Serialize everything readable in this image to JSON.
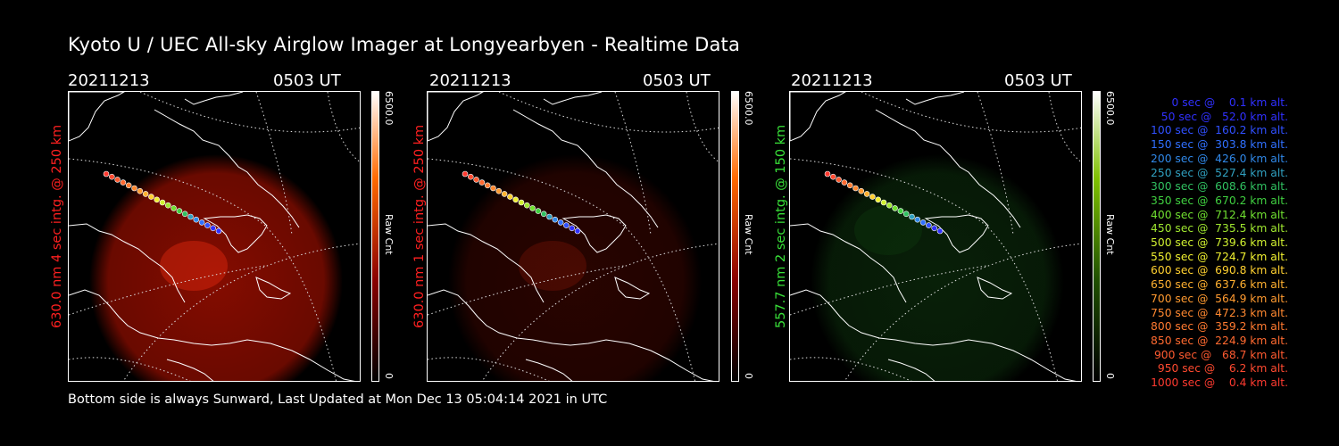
{
  "title": "Kyoto U / UEC All-sky Airglow Imager at Longyearbyen - Realtime Data",
  "footer": "Bottom side is always Sunward, Last Updated at Mon Dec 13 05:04:14 2021 in UTC",
  "panels": [
    {
      "date": "20211213",
      "time": "0503 UT",
      "label": "630.0 nm 4 sec intg. @ 250 km",
      "label_color": "#ff2020",
      "colorbar_max": "6500.0",
      "colorbar_min": "0",
      "colorbar_unit": "Raw Cnt",
      "colorbar_top": "#ffffff",
      "colorbar_mid": "#ff6a00",
      "colorbar_low": "#8a0000",
      "glow": "#b01000",
      "glow_strength": 0.75
    },
    {
      "date": "20211213",
      "time": "0503 UT",
      "label": "630.0 nm 1 sec intg. @ 250 km",
      "label_color": "#ff2020",
      "colorbar_max": "6500.0",
      "colorbar_min": "0",
      "colorbar_unit": "Raw Cnt",
      "colorbar_top": "#ffffff",
      "colorbar_mid": "#ff6a00",
      "colorbar_low": "#8a0000",
      "glow": "#5a0800",
      "glow_strength": 0.45
    },
    {
      "date": "20211213",
      "time": "0503 UT",
      "label": "557.7 nm 2 sec intg. @ 150 km",
      "label_color": "#38e038",
      "colorbar_max": "6500.0",
      "colorbar_min": "0",
      "colorbar_unit": "Raw Cnt",
      "colorbar_top": "#ffffff",
      "colorbar_mid": "#7fc000",
      "colorbar_low": "#205000",
      "glow": "#0f3a0f",
      "glow_strength": 0.55
    }
  ],
  "legend": [
    {
      "text": "0 sec @    0.1 km alt.",
      "color": "#3030ff"
    },
    {
      "text": "50 sec @   52.0 km alt.",
      "color": "#3030ff"
    },
    {
      "text": "100 sec @  160.2 km alt.",
      "color": "#3050ff"
    },
    {
      "text": "150 sec @  303.8 km alt.",
      "color": "#3070ff"
    },
    {
      "text": "200 sec @  426.0 km alt.",
      "color": "#3088e8"
    },
    {
      "text": "250 sec @  527.4 km alt.",
      "color": "#30a0c0"
    },
    {
      "text": "300 sec @  608.6 km alt.",
      "color": "#30c060"
    },
    {
      "text": "350 sec @  670.2 km alt.",
      "color": "#40d040"
    },
    {
      "text": "400 sec @  712.4 km alt.",
      "color": "#70e030"
    },
    {
      "text": "450 sec @  735.5 km alt.",
      "color": "#a0e830"
    },
    {
      "text": "500 sec @  739.6 km alt.",
      "color": "#d0f030"
    },
    {
      "text": "550 sec @  724.7 km alt.",
      "color": "#f0f030"
    },
    {
      "text": "600 sec @  690.8 km alt.",
      "color": "#ffd030"
    },
    {
      "text": "650 sec @  637.6 km alt.",
      "color": "#ffb030"
    },
    {
      "text": "700 sec @  564.9 km alt.",
      "color": "#ff9a30"
    },
    {
      "text": "750 sec @  472.3 km alt.",
      "color": "#ff8830"
    },
    {
      "text": "800 sec @  359.2 km alt.",
      "color": "#ff7a30"
    },
    {
      "text": "850 sec @  224.9 km alt.",
      "color": "#ff6a30"
    },
    {
      "text": "900 sec @   68.7 km alt.",
      "color": "#ff5a30"
    },
    {
      "text": "950 sec @    6.2 km alt.",
      "color": "#ff4a30"
    },
    {
      "text": "1000 sec @    0.4 km alt.",
      "color": "#ff3a30"
    }
  ]
}
